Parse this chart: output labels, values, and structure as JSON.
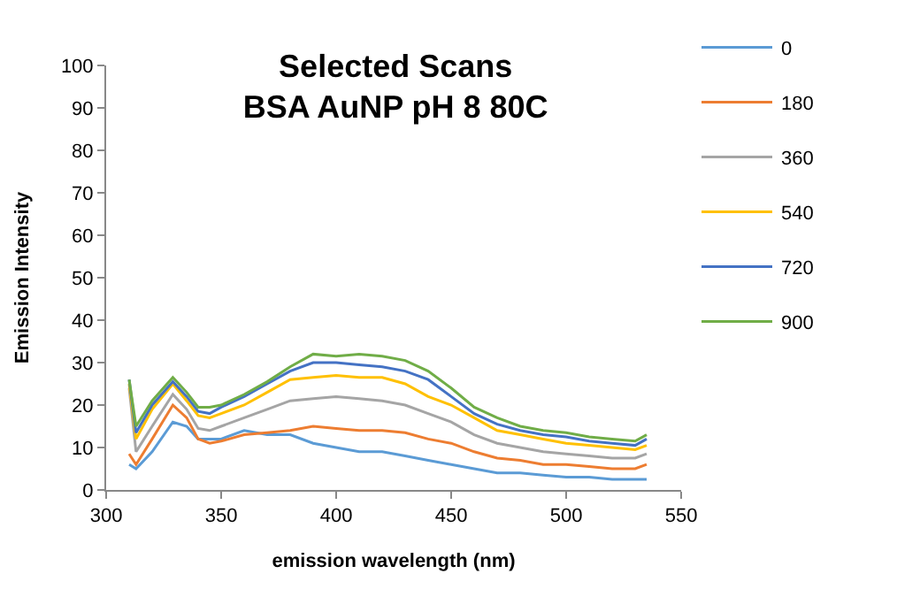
{
  "chart_data": {
    "type": "line",
    "title": "Selected Scans\nBSA AuNP pH 8 80C",
    "xlabel": "emission wavelength (nm)",
    "ylabel": "Emission Intensity",
    "x": [
      310,
      313,
      320,
      329,
      335,
      340,
      345,
      350,
      360,
      370,
      380,
      390,
      400,
      410,
      420,
      430,
      440,
      450,
      460,
      470,
      480,
      490,
      500,
      510,
      520,
      530,
      535
    ],
    "series": [
      {
        "name": "0",
        "color": "#5b9bd5",
        "values": [
          6,
          5,
          9,
          16,
          15,
          12,
          12,
          12,
          14,
          13,
          13,
          11,
          10,
          9,
          9,
          8,
          7,
          6,
          5,
          4,
          4,
          3.5,
          3,
          3,
          2.5,
          2.5,
          2.5
        ]
      },
      {
        "name": "180",
        "color": "#ed7d31",
        "values": [
          8.5,
          6,
          12,
          20,
          17,
          12,
          11,
          11.5,
          13,
          13.5,
          14,
          15,
          14.5,
          14,
          14,
          13.5,
          12,
          11,
          9,
          7.5,
          7,
          6,
          6,
          5.5,
          5,
          5,
          6
        ]
      },
      {
        "name": "360",
        "color": "#a5a5a5",
        "values": [
          24,
          9,
          15,
          22.5,
          19,
          14.5,
          14,
          15,
          17,
          19,
          21,
          21.5,
          22,
          21.5,
          21,
          20,
          18,
          16,
          13,
          11,
          10,
          9,
          8.5,
          8,
          7.5,
          7.5,
          8.5
        ]
      },
      {
        "name": "540",
        "color": "#ffc000",
        "values": [
          25,
          12,
          19,
          25,
          21,
          17.5,
          17,
          18,
          20,
          23,
          26,
          26.5,
          27,
          26.5,
          26.5,
          25,
          22,
          20,
          17,
          14,
          13,
          12,
          11,
          10.5,
          10,
          9.5,
          10.5
        ]
      },
      {
        "name": "720",
        "color": "#4472c4",
        "values": [
          26,
          13.5,
          20,
          25.5,
          22,
          18.5,
          18,
          19.5,
          22,
          25,
          28,
          30,
          30,
          29.5,
          29,
          28,
          26,
          22,
          18,
          15.5,
          14,
          13,
          12.5,
          11.5,
          11,
          10.5,
          12
        ]
      },
      {
        "name": "900",
        "color": "#70ad47",
        "values": [
          26,
          15,
          21,
          26.5,
          23,
          19.5,
          19.5,
          20,
          22.5,
          25.5,
          29,
          32,
          31.5,
          32,
          31.5,
          30.5,
          28,
          24,
          19.5,
          17,
          15,
          14,
          13.5,
          12.5,
          12,
          11.5,
          13
        ]
      }
    ],
    "xlim": [
      300,
      550
    ],
    "xticks": [
      300,
      350,
      400,
      450,
      500,
      550
    ],
    "ylim": [
      0,
      100
    ],
    "yticks": [
      0,
      10,
      20,
      30,
      40,
      50,
      60,
      70,
      80,
      90,
      100
    ],
    "legend": "right",
    "marker": "none",
    "line_style": "solid"
  }
}
